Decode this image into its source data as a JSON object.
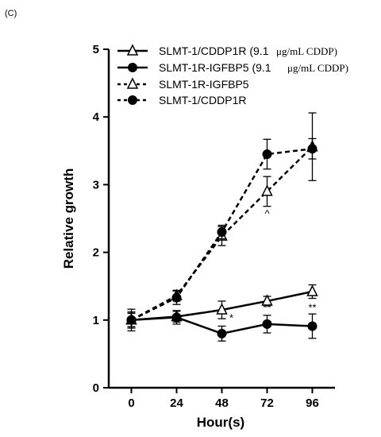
{
  "panel_label": "(C)",
  "chart_data": {
    "type": "line",
    "xlabel": "Hour(s)",
    "ylabel": "Relative growth",
    "x": [
      0,
      24,
      48,
      72,
      96
    ],
    "xlim": [
      -12,
      108
    ],
    "ylim": [
      0,
      5
    ],
    "xticks": [
      0,
      24,
      48,
      72,
      96
    ],
    "yticks": [
      0,
      1,
      2,
      3,
      4,
      5
    ],
    "grid": false,
    "legend_position": "top",
    "series": [
      {
        "name": "SLMT-1/CDDP1R (9.1",
        "name_suffix": "μg/mL CDDP)",
        "marker": "open-triangle",
        "line": "solid",
        "values": [
          1.0,
          1.05,
          1.15,
          1.28,
          1.42
        ],
        "errors": [
          0.12,
          0.08,
          0.13,
          0.07,
          0.1
        ]
      },
      {
        "name": "SLMT-1R-IGFBP5 (9.1",
        "name_suffix": "μg/mL CDDP)",
        "marker": "filled-circle",
        "line": "solid",
        "values": [
          1.0,
          1.04,
          0.8,
          0.94,
          0.91
        ],
        "errors": [
          0.16,
          0.1,
          0.11,
          0.13,
          0.18
        ]
      },
      {
        "name": "SLMT-1R-IGFBP5",
        "name_suffix": "",
        "marker": "open-triangle",
        "line": "dotted",
        "values": [
          1.0,
          1.36,
          2.24,
          2.9,
          3.56
        ],
        "errors": [
          0.1,
          0.08,
          0.14,
          0.22,
          0.5
        ]
      },
      {
        "name": "SLMT-1/CDDP1R",
        "name_suffix": "",
        "marker": "filled-circle",
        "line": "dotted",
        "values": [
          1.0,
          1.33,
          2.3,
          3.45,
          3.53
        ],
        "errors": [
          0.1,
          0.1,
          0.1,
          0.22,
          0.15
        ]
      }
    ],
    "annotations": [
      {
        "x": 48,
        "y": 0.98,
        "text": "*"
      },
      {
        "x": 72,
        "y": 1.13,
        "text": "**"
      },
      {
        "x": 96,
        "y": 1.13,
        "text": "**"
      },
      {
        "x": 72,
        "y": 2.52,
        "text": "^"
      }
    ]
  }
}
